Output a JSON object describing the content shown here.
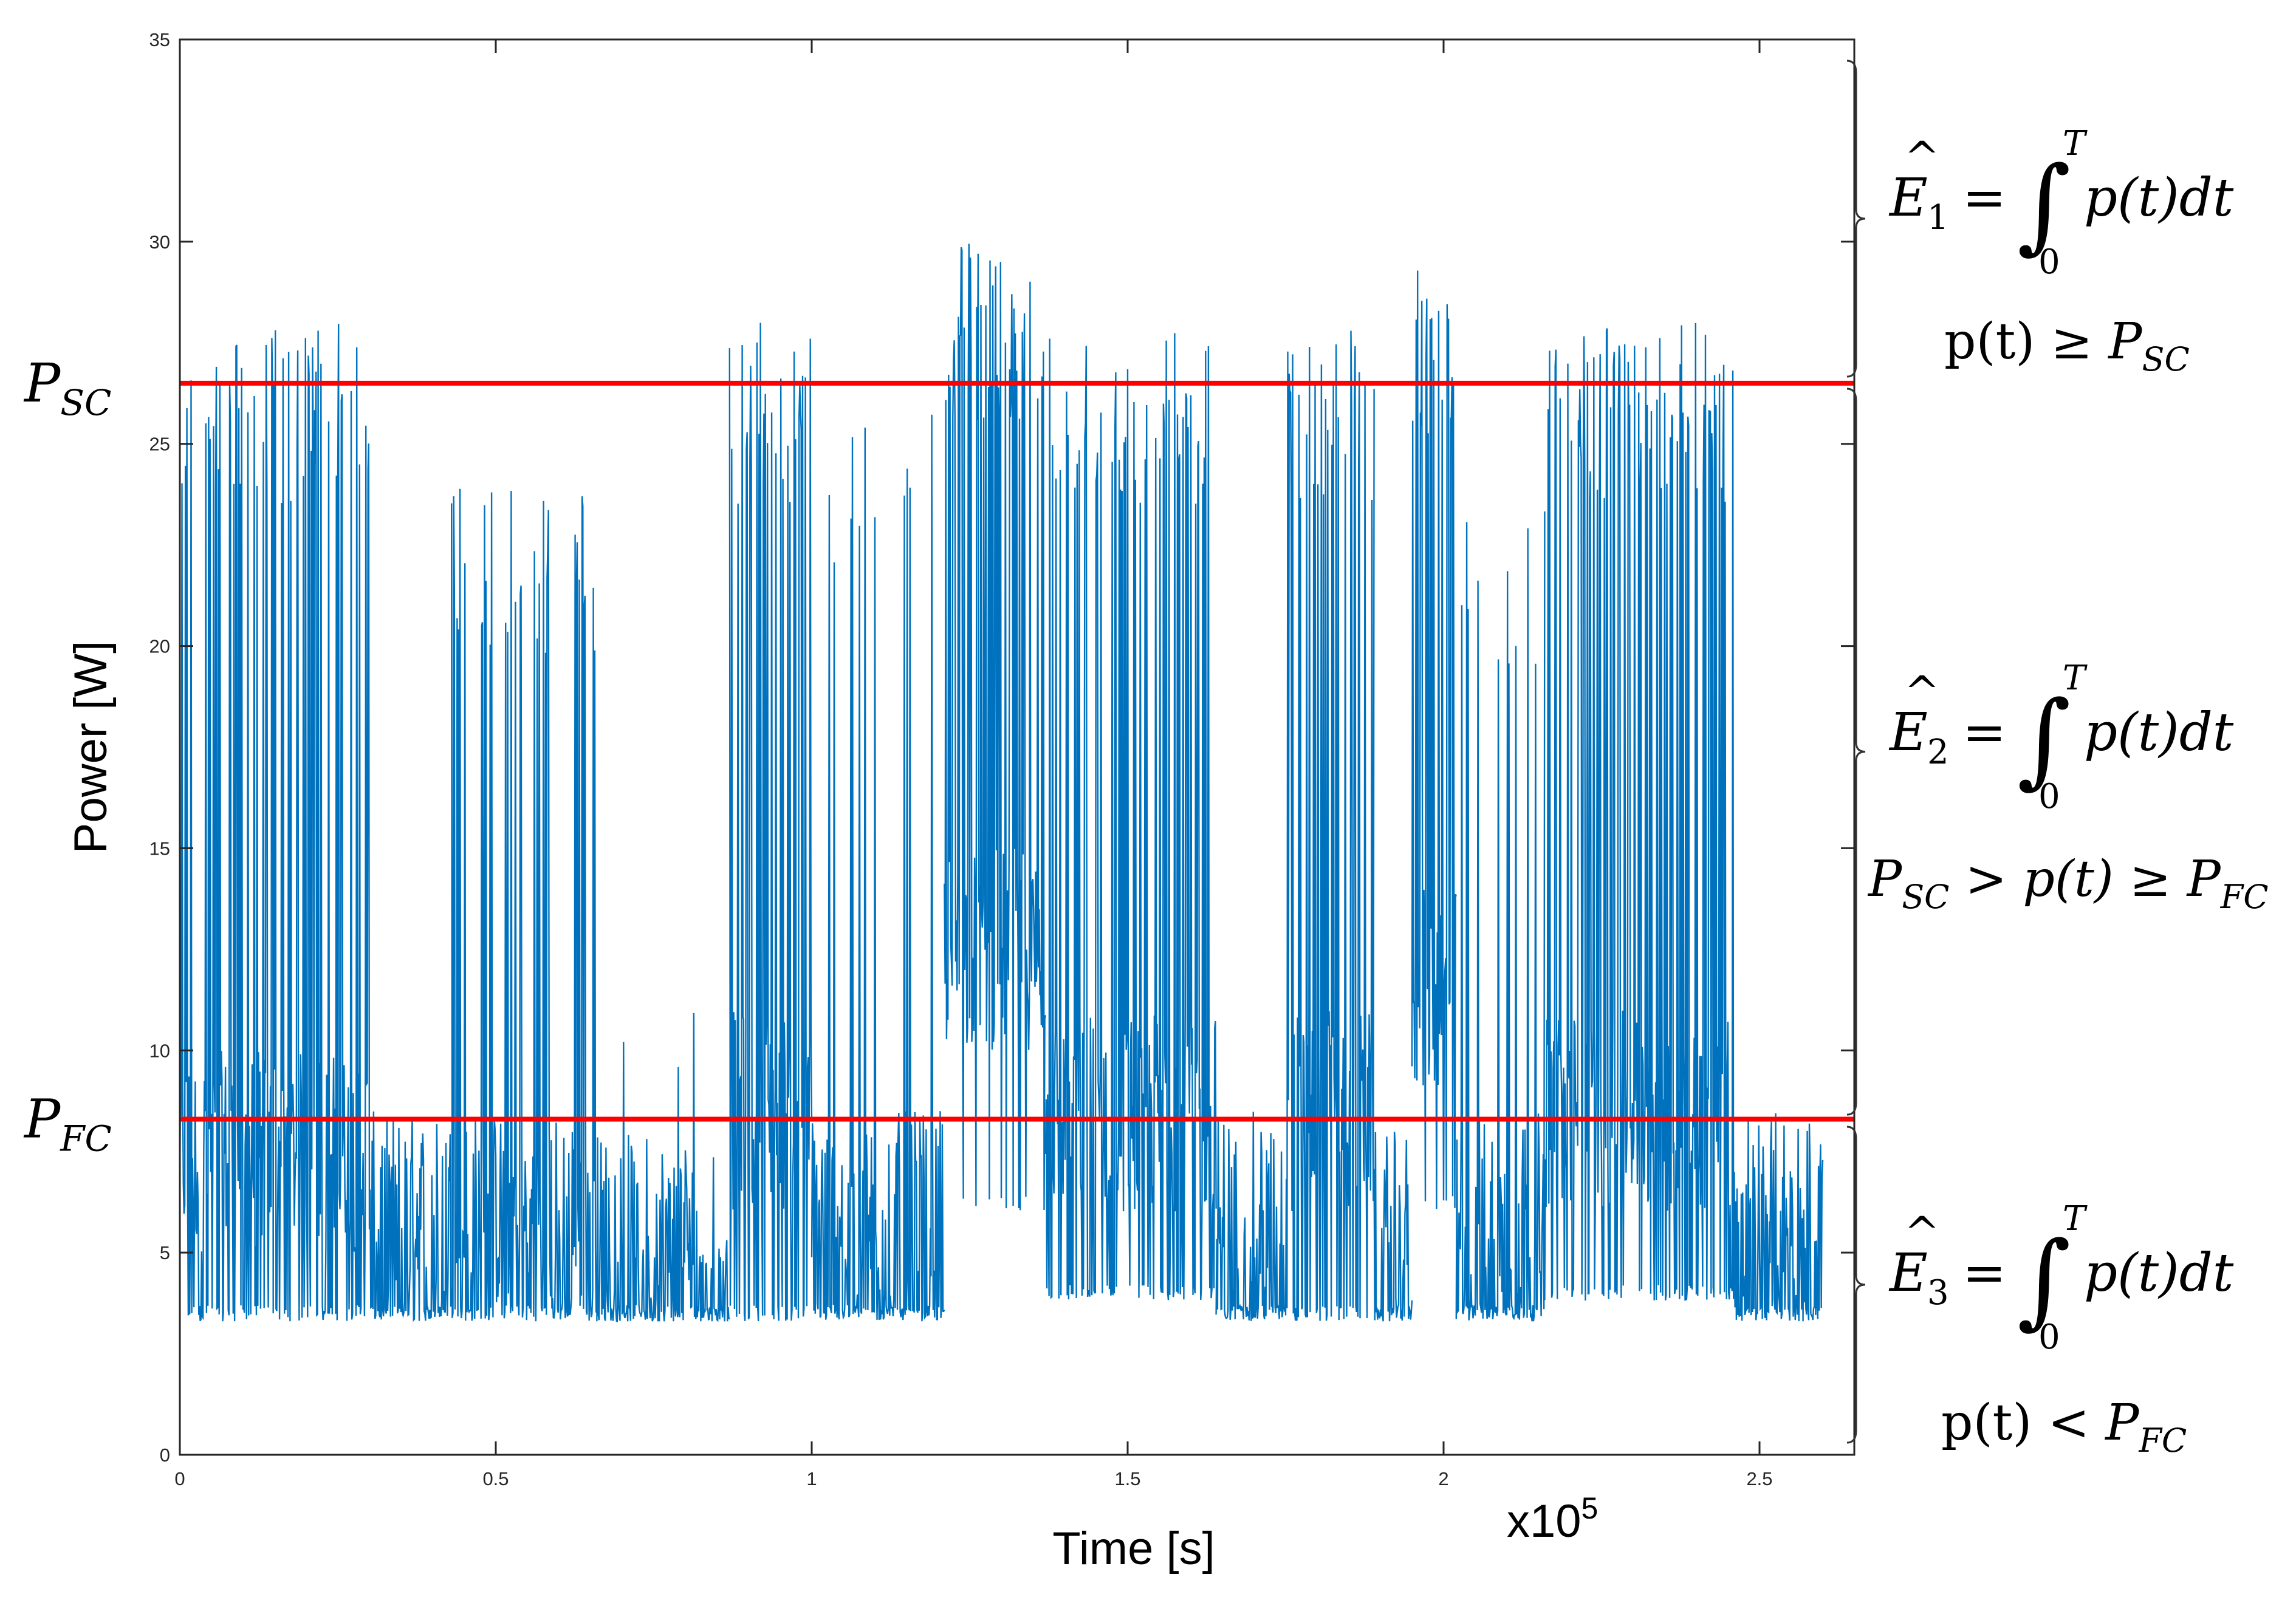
{
  "chart_data": {
    "type": "line",
    "xlabel": "Time [s]",
    "ylabel": "Power [W]",
    "x_multiplier_label": "x10",
    "x_multiplier_exp": "5",
    "xlim": [
      0,
      2.65
    ],
    "ylim": [
      0,
      35
    ],
    "x_ticks": [
      "0",
      "0.5",
      "1",
      "1.5",
      "2",
      "2.5"
    ],
    "y_ticks": [
      "0",
      "5",
      "10",
      "15",
      "20",
      "25",
      "30",
      "35"
    ],
    "series_color": "#0072BD",
    "threshold_color": "#FF0000",
    "thresholds": [
      {
        "label": "P",
        "sub": "SC",
        "value": 26.5
      },
      {
        "label": "P",
        "sub": "FC",
        "value": 8.3
      }
    ],
    "segments": [
      {
        "x0": 0.0,
        "x1": 0.3,
        "low": 3.3,
        "base": 7.0,
        "spike": 28.0,
        "density": 0.55
      },
      {
        "x0": 0.3,
        "x1": 0.43,
        "low": 3.3,
        "base": 5.5,
        "spike": 8.5,
        "density": 0.0
      },
      {
        "x0": 0.43,
        "x1": 0.66,
        "low": 3.3,
        "base": 5.5,
        "spike": 24.0,
        "density": 0.35
      },
      {
        "x0": 0.66,
        "x1": 0.87,
        "low": 3.3,
        "base": 5.0,
        "spike": 11.0,
        "density": 0.05
      },
      {
        "x0": 0.87,
        "x1": 1.0,
        "low": 3.3,
        "base": 8.0,
        "spike": 28.0,
        "density": 0.6
      },
      {
        "x0": 1.0,
        "x1": 1.21,
        "low": 3.3,
        "base": 5.5,
        "spike": 26.0,
        "density": 0.12
      },
      {
        "x0": 1.21,
        "x1": 1.37,
        "low": 6.0,
        "base": 12.0,
        "spike": 30.0,
        "density": 0.95
      },
      {
        "x0": 1.37,
        "x1": 1.64,
        "low": 3.8,
        "base": 8.0,
        "spike": 28.0,
        "density": 0.55
      },
      {
        "x0": 1.64,
        "x1": 1.75,
        "low": 3.3,
        "base": 5.5,
        "spike": 9.0,
        "density": 0.0
      },
      {
        "x0": 1.75,
        "x1": 1.89,
        "low": 3.3,
        "base": 8.0,
        "spike": 28.0,
        "density": 0.55
      },
      {
        "x0": 1.89,
        "x1": 1.95,
        "low": 3.3,
        "base": 5.0,
        "spike": 8.0,
        "density": 0.0
      },
      {
        "x0": 1.95,
        "x1": 2.02,
        "low": 6.0,
        "base": 11.0,
        "spike": 29.5,
        "density": 0.9
      },
      {
        "x0": 2.02,
        "x1": 2.16,
        "low": 3.3,
        "base": 5.5,
        "spike": 23.5,
        "density": 0.15
      },
      {
        "x0": 2.16,
        "x1": 2.46,
        "low": 3.8,
        "base": 8.0,
        "spike": 28.0,
        "density": 0.55
      },
      {
        "x0": 2.46,
        "x1": 2.6,
        "low": 3.3,
        "base": 5.5,
        "spike": 8.5,
        "density": 0.0
      }
    ]
  },
  "annotations": [
    {
      "energy": "E",
      "hat": "^",
      "index": "1",
      "eq": "=",
      "integral": "∫",
      "upper": "T",
      "lower": "0",
      "integrand": "p(t)dt",
      "cond_parts": [
        {
          "t": "p(t) ≥ ",
          "s": "up"
        },
        {
          "t": "P",
          "s": "it"
        },
        {
          "t": "SC",
          "s": "sub"
        }
      ]
    },
    {
      "energy": "E",
      "hat": "^",
      "index": "2",
      "eq": "=",
      "integral": "∫",
      "upper": "T",
      "lower": "0",
      "integrand": "p(t)dt",
      "cond_parts": [
        {
          "t": "P",
          "s": "it"
        },
        {
          "t": "SC",
          "s": "sub"
        },
        {
          "t": " > p(t) ≥ ",
          "s": "it"
        },
        {
          "t": "P",
          "s": "it"
        },
        {
          "t": "FC",
          "s": "sub"
        }
      ]
    },
    {
      "energy": "E",
      "hat": "^",
      "index": "3",
      "eq": "=",
      "integral": "∫",
      "upper": "T",
      "lower": "0",
      "integrand": "p(t)dt",
      "cond_parts": [
        {
          "t": "p(t) < ",
          "s": "up"
        },
        {
          "t": "P",
          "s": "it"
        },
        {
          "t": "FC",
          "s": "sub"
        }
      ]
    }
  ]
}
